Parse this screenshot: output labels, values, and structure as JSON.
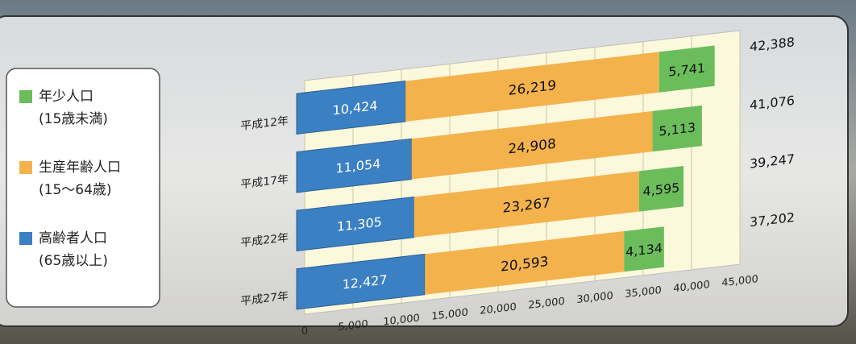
{
  "chart_data": {
    "type": "stacked-bar-horizontal",
    "categories": [
      "平成12年",
      "平成17年",
      "平成22年",
      "平成27年"
    ],
    "series": [
      {
        "name": "高齢者人口",
        "age_range": "(65歳以上)",
        "color": "#3b80c3",
        "values": [
          10424,
          11054,
          11305,
          12427
        ],
        "value_labels": [
          "10,424",
          "11,054",
          "11,305",
          "12,427"
        ]
      },
      {
        "name": "生産年齢人口",
        "age_range": "(15〜64歳)",
        "color": "#f4b24d",
        "values": [
          26219,
          24908,
          23267,
          20593
        ],
        "value_labels": [
          "26,219",
          "24,908",
          "23,267",
          "20,593"
        ]
      },
      {
        "name": "年少人口",
        "age_range": "(15歳未満)",
        "color": "#6bbd5b",
        "values": [
          5741,
          5113,
          4595,
          4134
        ],
        "value_labels": [
          "5,741",
          "5,113",
          "4,595",
          "4,134"
        ]
      }
    ],
    "totals": [
      42388,
      41076,
      39247,
      37202
    ],
    "totals_labels": [
      "42,388",
      "41,076",
      "39,247",
      "37,202"
    ],
    "xlim": [
      0,
      45000
    ],
    "xticks": [
      0,
      {
        "value": 5000,
        "label": "5,000"
      },
      {
        "value": 10000,
        "label": "10,000"
      },
      {
        "value": 15000,
        "label": "15,000"
      },
      {
        "value": 20000,
        "label": "20,000"
      },
      {
        "value": 25000,
        "label": "25,000"
      },
      {
        "value": 30000,
        "label": "30,000"
      },
      {
        "value": 35000,
        "label": "35,000"
      },
      {
        "value": 40000,
        "label": "40,000"
      },
      {
        "value": 45000,
        "label": "45,000"
      }
    ],
    "grid": true,
    "legend_order": [
      2,
      1,
      0
    ]
  }
}
